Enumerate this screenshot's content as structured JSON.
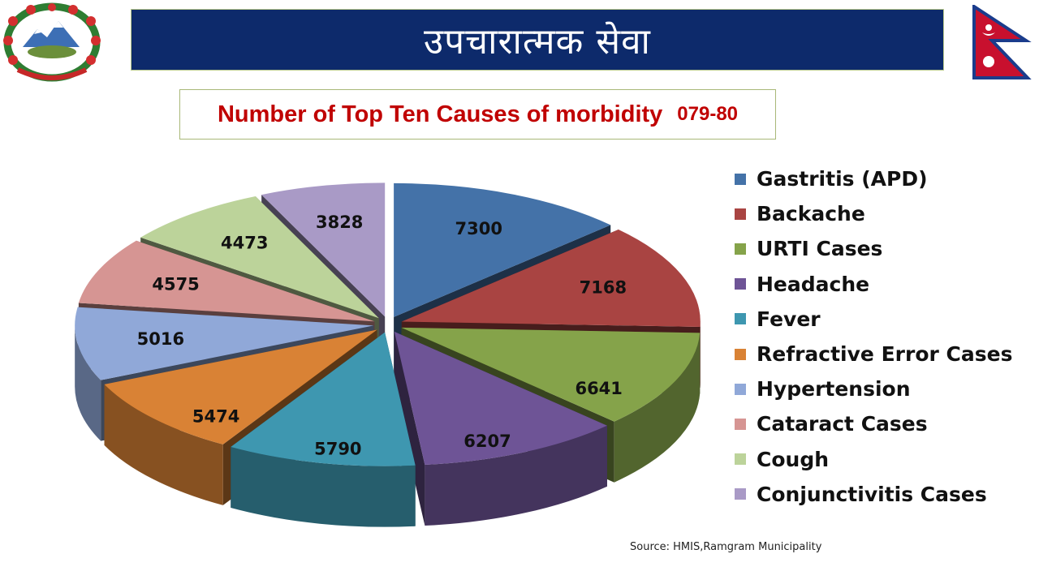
{
  "header": {
    "banner_title": "उपचारात्मक सेवा",
    "emblem_icon": "nepal-emblem-icon",
    "flag_icon": "nepal-flag-icon",
    "banner_color": "#0d2a6b"
  },
  "chart_title": {
    "main": "Number of Top Ten Causes of morbidity",
    "year": "079-80"
  },
  "chart_data": {
    "type": "pie",
    "title": "Number of Top Ten Causes of morbidity 079-80",
    "categories": [
      "Gastritis (APD)",
      "Backache",
      "URTI Cases",
      "Headache",
      "Fever",
      "Refractive Error Cases",
      "Hypertension",
      "Cataract Cases",
      "Cough",
      "Conjunctivitis Cases"
    ],
    "values": [
      7300,
      7168,
      6641,
      6207,
      5790,
      5474,
      5016,
      4575,
      4473,
      3828
    ],
    "colors": [
      "#4472a8",
      "#a94442",
      "#85a34a",
      "#6e5496",
      "#3e97b0",
      "#d98235",
      "#90a8d8",
      "#d69593",
      "#bcd39a",
      "#a99ac6"
    ],
    "legend_position": "right",
    "exploded": true,
    "style": "3d"
  },
  "legend": {
    "items": [
      "Gastritis (APD)",
      "Backache",
      "URTI Cases",
      "Headache",
      "Fever",
      "Refractive Error Cases",
      "Hypertension",
      "Cataract Cases",
      "Cough",
      "Conjunctivitis Cases"
    ]
  },
  "footer": {
    "source": "Source: HMIS,Ramgram Municipality"
  }
}
